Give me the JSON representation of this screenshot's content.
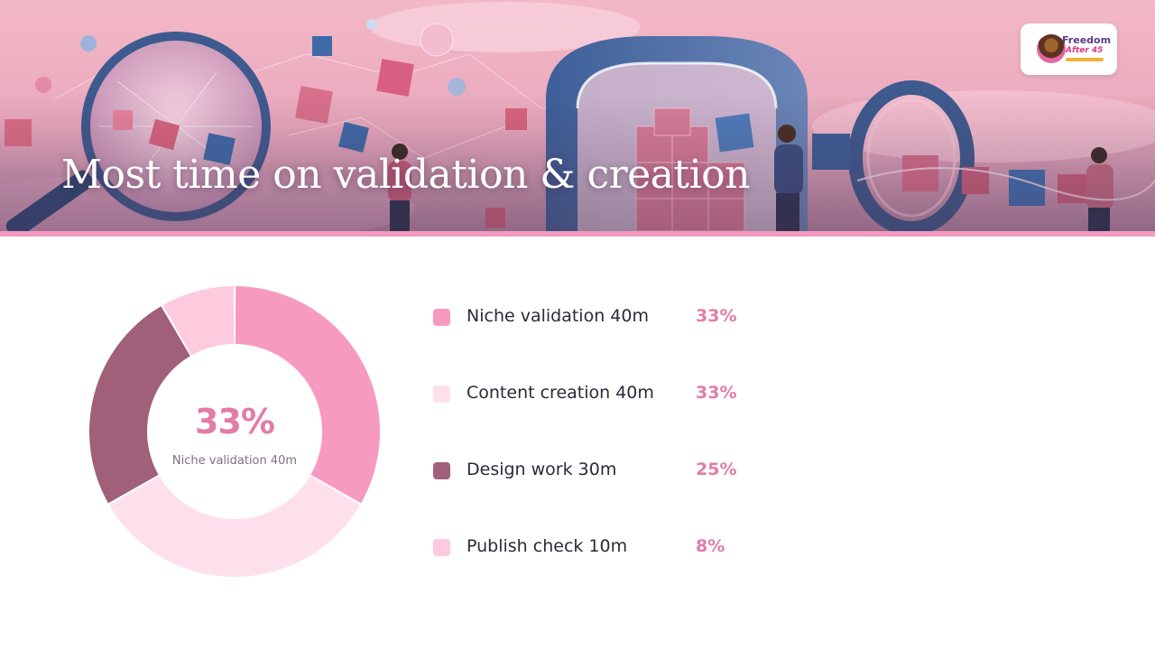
{
  "slide": {
    "title": "Most time on validation & creation",
    "logo": {
      "line1": "Freedom",
      "line2": "After 45"
    }
  },
  "chart_data": {
    "type": "pie",
    "title": "",
    "categories": [
      "Niche validation 40m",
      "Content creation 40m",
      "Design work 30m",
      "Publish check 10m"
    ],
    "values": [
      40,
      40,
      30,
      10
    ],
    "percent_labels": [
      "33%",
      "33%",
      "25%",
      "8%"
    ],
    "colors": [
      "#f79ac0",
      "#fde0ec",
      "#a0607a",
      "#fdcade"
    ],
    "center": {
      "value": "33%",
      "label": "Niche validation 40m"
    },
    "legend_placement": "right"
  }
}
